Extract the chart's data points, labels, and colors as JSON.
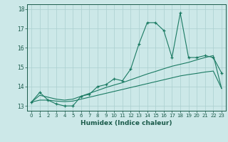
{
  "title": "",
  "xlabel": "Humidex (Indice chaleur)",
  "x_values": [
    0,
    1,
    2,
    3,
    4,
    5,
    6,
    7,
    8,
    9,
    10,
    11,
    12,
    13,
    14,
    15,
    16,
    17,
    18,
    19,
    20,
    21,
    22,
    23
  ],
  "y_main": [
    13.2,
    13.7,
    13.3,
    13.1,
    13.0,
    13.0,
    13.5,
    13.6,
    14.0,
    14.1,
    14.4,
    14.3,
    14.9,
    16.2,
    17.3,
    17.3,
    16.9,
    15.5,
    17.8,
    15.5,
    15.5,
    15.6,
    15.5,
    14.7
  ],
  "y_mid": [
    13.2,
    13.55,
    13.45,
    13.35,
    13.3,
    13.35,
    13.5,
    13.65,
    13.8,
    13.95,
    14.08,
    14.2,
    14.35,
    14.5,
    14.65,
    14.78,
    14.92,
    15.05,
    15.15,
    15.25,
    15.38,
    15.5,
    15.6,
    13.9
  ],
  "y_low": [
    13.2,
    13.3,
    13.3,
    13.25,
    13.22,
    13.25,
    13.35,
    13.45,
    13.55,
    13.65,
    13.75,
    13.85,
    13.95,
    14.05,
    14.15,
    14.25,
    14.35,
    14.45,
    14.55,
    14.62,
    14.68,
    14.75,
    14.8,
    13.9
  ],
  "color_main": "#1a7a62",
  "color_bg": "#cce8e8",
  "color_grid": "#aacfcf",
  "color_text": "#1a5a4a",
  "ylim": [
    12.75,
    18.25
  ],
  "yticks": [
    13,
    14,
    15,
    16,
    17,
    18
  ],
  "xlim": [
    -0.5,
    23.5
  ]
}
